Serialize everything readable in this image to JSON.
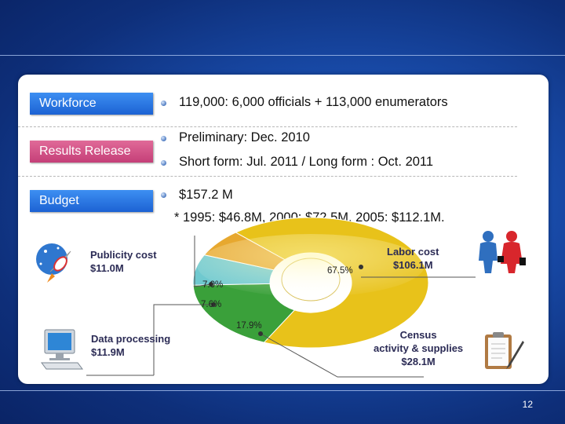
{
  "rows": {
    "workforce": {
      "label": "Workforce",
      "bullets": [
        "119,000:  6,000 officials + 113,000 enumerators"
      ]
    },
    "release": {
      "label": "Results Release",
      "bullets": [
        "Preliminary: Dec. 2010",
        "Short form: Jul. 2011 / Long form : Oct. 2011"
      ]
    },
    "budget": {
      "label": "Budget",
      "bullets": [
        "$157.2 M"
      ],
      "note": "* 1995: $46.8M, 2000: $72.5M, 2005: $112.1M."
    }
  },
  "chart_data": {
    "type": "pie",
    "variant": "donut",
    "slices": [
      {
        "label": "Labor cost",
        "value_text": "$106.1M",
        "value": 106.1,
        "percent": 67.5,
        "color": "#e8c21a"
      },
      {
        "label": "Census activity & supplies",
        "value_text": "$28.1M",
        "value": 28.1,
        "percent": 17.9,
        "color": "#3aa03a"
      },
      {
        "label": "Data processing",
        "value_text": "$11.9M",
        "value": 11.9,
        "percent": 7.6,
        "color": "#6fc9cf"
      },
      {
        "label": "Publicity cost",
        "value_text": "$11.0M",
        "value": 11.0,
        "percent": 7.0,
        "color": "#e7a82f"
      }
    ],
    "percent_labels": [
      "67.5%",
      "17.9%",
      "7.6%",
      "7.0%"
    ]
  },
  "callouts": {
    "publicity": {
      "line1": "Publicity cost",
      "line2": "$11.0M"
    },
    "labor": {
      "line1": "Labor cost",
      "line2": "$106.1M"
    },
    "data": {
      "line1": "Data processing",
      "line2": "$11.9M"
    },
    "census": {
      "line1": "Census",
      "line2": "activity & supplies",
      "line3": "$28.1M"
    }
  },
  "icons": [
    "rocket-icon",
    "people-icon",
    "computer-icon",
    "clipboard-icon"
  ],
  "page_number": "12"
}
